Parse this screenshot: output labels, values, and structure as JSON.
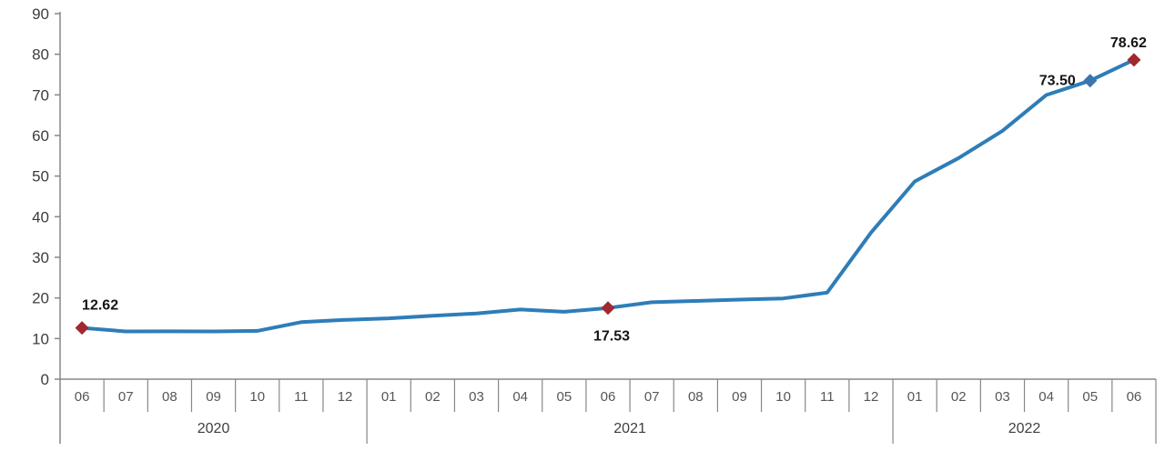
{
  "chart_data": {
    "type": "line",
    "categories": [
      "06",
      "07",
      "08",
      "09",
      "10",
      "11",
      "12",
      "01",
      "02",
      "03",
      "04",
      "05",
      "06",
      "07",
      "08",
      "09",
      "10",
      "11",
      "12",
      "01",
      "02",
      "03",
      "04",
      "05",
      "06"
    ],
    "year_groups": [
      {
        "label": "2020",
        "span": 7
      },
      {
        "label": "2021",
        "span": 12
      },
      {
        "label": "2022",
        "span": 6
      }
    ],
    "values": [
      12.62,
      11.76,
      11.77,
      11.75,
      11.89,
      14.03,
      14.6,
      14.97,
      15.61,
      16.19,
      17.14,
      16.59,
      17.53,
      18.95,
      19.25,
      19.58,
      19.89,
      21.31,
      36.08,
      48.69,
      54.44,
      61.14,
      69.97,
      73.5,
      78.62
    ],
    "ylim": [
      0,
      90
    ],
    "ytick_step": 10,
    "yticks": [
      0,
      10,
      20,
      30,
      40,
      50,
      60,
      70,
      80,
      90
    ],
    "grid": false,
    "legend_position": "none",
    "annotations": [
      {
        "index": 0,
        "label": "12.62",
        "marker": "diamond",
        "marker_color": "#a1282e",
        "placement": "above-right"
      },
      {
        "index": 12,
        "label": "17.53",
        "marker": "diamond",
        "marker_color": "#a1282e",
        "placement": "below"
      },
      {
        "index": 23,
        "label": "73.50",
        "marker": "diamond",
        "marker_color": "#3c74ad",
        "placement": "left"
      },
      {
        "index": 24,
        "label": "78.62",
        "marker": "diamond",
        "marker_color": "#a1282e",
        "placement": "above"
      }
    ]
  },
  "colors": {
    "line": "#2e7db8",
    "marker_primary": "#a1282e",
    "marker_secondary": "#3c74ad",
    "axis": "#878787",
    "ytick_label": "#3d3d3d",
    "month_label": "#565656",
    "year_label": "#3f3f3f",
    "data_label": "#141414",
    "background": "#ffffff"
  }
}
